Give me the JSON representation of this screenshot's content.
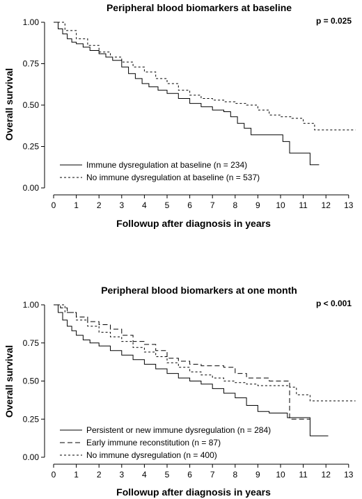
{
  "chart_data": [
    {
      "type": "line",
      "title": "Peripheral blood biomarkers at baseline",
      "annotation": "p = 0.025",
      "xlabel": "Followup after diagnosis in years",
      "ylabel": "Overall survival",
      "xlim": [
        0,
        13
      ],
      "ylim": [
        0,
        1
      ],
      "xticks": [
        "0",
        "1",
        "2",
        "3",
        "4",
        "5",
        "6",
        "7",
        "8",
        "9",
        "10",
        "11",
        "12",
        "13"
      ],
      "yticks": [
        "0.00",
        "0.25",
        "0.50",
        "0.75",
        "1.00"
      ],
      "grid": false,
      "legend_position": "bottom-left",
      "series": [
        {
          "name": "Immune dysregulation at baseline (n = 234)",
          "style": "solid",
          "x": [
            0,
            0.2,
            0.4,
            0.6,
            0.8,
            1.0,
            1.3,
            1.6,
            2.0,
            2.3,
            2.6,
            3.0,
            3.3,
            3.6,
            3.9,
            4.2,
            4.6,
            5.0,
            5.5,
            6.0,
            6.5,
            7.0,
            7.5,
            7.8,
            8.1,
            8.4,
            8.7,
            9.2,
            9.7,
            10.1,
            10.4,
            11.3,
            11.7
          ],
          "y": [
            1.0,
            0.96,
            0.93,
            0.9,
            0.88,
            0.87,
            0.85,
            0.83,
            0.81,
            0.79,
            0.77,
            0.73,
            0.69,
            0.66,
            0.63,
            0.61,
            0.59,
            0.57,
            0.54,
            0.51,
            0.49,
            0.47,
            0.46,
            0.43,
            0.39,
            0.36,
            0.32,
            0.32,
            0.32,
            0.28,
            0.21,
            0.14,
            0.14
          ]
        },
        {
          "name": "No immune dysregulation at baseline (n = 537)",
          "style": "dotted",
          "x": [
            0,
            0.5,
            1.0,
            1.5,
            2.0,
            2.5,
            3.0,
            3.5,
            4.0,
            4.5,
            5.0,
            5.5,
            6.0,
            6.5,
            7.0,
            7.5,
            8.0,
            8.5,
            9.0,
            9.5,
            10.0,
            10.5,
            11.0,
            11.5,
            12.0,
            13.3
          ],
          "y": [
            1.0,
            0.95,
            0.9,
            0.86,
            0.82,
            0.79,
            0.76,
            0.73,
            0.7,
            0.66,
            0.63,
            0.59,
            0.56,
            0.54,
            0.53,
            0.52,
            0.51,
            0.5,
            0.47,
            0.44,
            0.43,
            0.42,
            0.39,
            0.35,
            0.35,
            0.35
          ]
        }
      ]
    },
    {
      "type": "line",
      "title": "Peripheral blood biomarkers at one month",
      "annotation": "p < 0.001",
      "xlabel": "Followup after diagnosis in years",
      "ylabel": "Overall survival",
      "xlim": [
        0,
        13
      ],
      "ylim": [
        0,
        1
      ],
      "xticks": [
        "0",
        "1",
        "2",
        "3",
        "4",
        "5",
        "6",
        "7",
        "8",
        "9",
        "10",
        "11",
        "12",
        "13"
      ],
      "yticks": [
        "0.00",
        "0.25",
        "0.50",
        "0.75",
        "1.00"
      ],
      "grid": false,
      "legend_position": "bottom-left",
      "series": [
        {
          "name": "Persistent or new immune dysregulation (n = 284)",
          "style": "solid",
          "x": [
            0,
            0.2,
            0.4,
            0.6,
            0.8,
            1.0,
            1.3,
            1.6,
            2.0,
            2.5,
            3.0,
            3.5,
            4.0,
            4.5,
            5.0,
            5.5,
            6.0,
            6.5,
            7.0,
            7.5,
            8.0,
            8.5,
            9.0,
            9.5,
            10.0,
            10.3,
            11.0,
            11.3,
            12.1
          ],
          "y": [
            1.0,
            0.95,
            0.9,
            0.86,
            0.83,
            0.8,
            0.77,
            0.75,
            0.73,
            0.7,
            0.67,
            0.64,
            0.61,
            0.58,
            0.55,
            0.52,
            0.5,
            0.48,
            0.45,
            0.42,
            0.39,
            0.34,
            0.3,
            0.29,
            0.29,
            0.26,
            0.26,
            0.14,
            0.14
          ]
        },
        {
          "name": "Early immune reconstitution (n = 87)",
          "style": "dashed",
          "x": [
            0,
            0.3,
            0.6,
            1.0,
            1.5,
            2.0,
            2.5,
            3.0,
            3.5,
            4.0,
            4.5,
            5.0,
            5.5,
            6.0,
            6.5,
            7.0,
            7.5,
            8.0,
            8.5,
            9.0,
            9.5,
            10.0,
            10.4,
            11.3
          ],
          "y": [
            1.0,
            0.98,
            0.95,
            0.92,
            0.89,
            0.87,
            0.84,
            0.8,
            0.76,
            0.74,
            0.7,
            0.65,
            0.63,
            0.61,
            0.6,
            0.6,
            0.59,
            0.55,
            0.52,
            0.52,
            0.5,
            0.5,
            0.25,
            0.25
          ]
        },
        {
          "name": "No immune dysregulation (n = 400)",
          "style": "dotted",
          "x": [
            0,
            0.5,
            1.0,
            1.5,
            2.0,
            2.5,
            3.0,
            3.5,
            4.0,
            4.5,
            5.0,
            5.5,
            6.0,
            6.5,
            7.0,
            7.5,
            8.0,
            8.5,
            9.0,
            9.5,
            10.0,
            10.4,
            10.7,
            11.3,
            12.0,
            13.3
          ],
          "y": [
            1.0,
            0.95,
            0.9,
            0.86,
            0.82,
            0.79,
            0.76,
            0.72,
            0.69,
            0.66,
            0.62,
            0.59,
            0.56,
            0.54,
            0.52,
            0.5,
            0.49,
            0.48,
            0.47,
            0.47,
            0.47,
            0.46,
            0.41,
            0.37,
            0.37,
            0.37
          ]
        }
      ]
    }
  ]
}
